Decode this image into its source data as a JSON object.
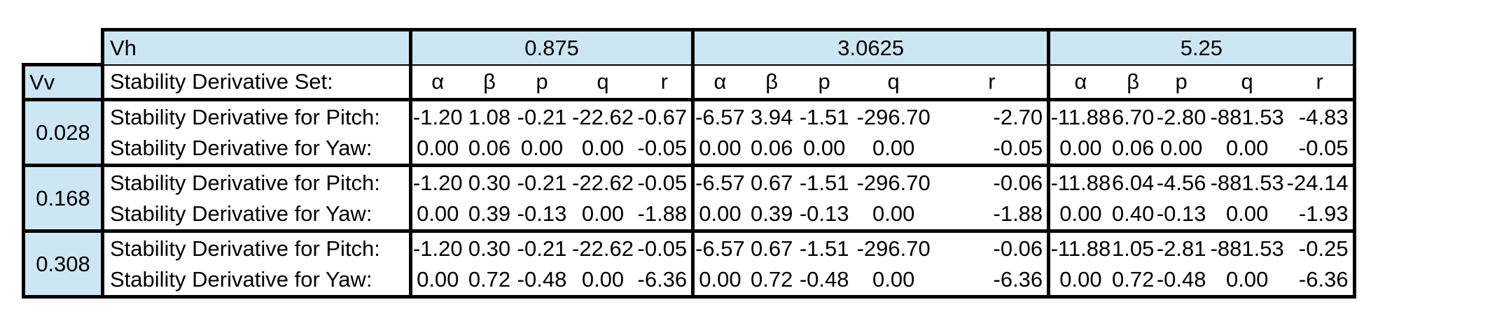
{
  "header": {
    "vh_label": "Vh",
    "vv_label": "Vv",
    "set_label": "Stability Derivative Set:",
    "groups": [
      "0.875",
      "3.0625",
      "5.25"
    ],
    "symbols": [
      "α",
      "β",
      "p",
      "q",
      "r"
    ]
  },
  "rows": [
    {
      "vv": "0.028",
      "pitch_label": "Stability Derivative for Pitch:",
      "yaw_label": "Stability Derivative for Yaw:",
      "pitch": [
        [
          "-1.20",
          "1.08",
          "-0.21",
          "-22.62",
          "-0.67"
        ],
        [
          "-6.57",
          "3.94",
          "-1.51",
          "-296.70",
          "-2.70"
        ],
        [
          "-11.88",
          "6.70",
          "-2.80",
          "-881.53",
          "-4.83"
        ]
      ],
      "yaw": [
        [
          "0.00",
          "0.06",
          "0.00",
          "0.00",
          "-0.05"
        ],
        [
          "0.00",
          "0.06",
          "0.00",
          "0.00",
          "-0.05"
        ],
        [
          "0.00",
          "0.06",
          "0.00",
          "0.00",
          "-0.05"
        ]
      ]
    },
    {
      "vv": "0.168",
      "pitch_label": "Stability Derivative for Pitch:",
      "yaw_label": "Stability Derivative for Yaw:",
      "pitch": [
        [
          "-1.20",
          "0.30",
          "-0.21",
          "-22.62",
          "-0.05"
        ],
        [
          "-6.57",
          "0.67",
          "-1.51",
          "-296.70",
          "-0.06"
        ],
        [
          "-11.88",
          "6.04",
          "-4.56",
          "-881.53",
          "-24.14"
        ]
      ],
      "yaw": [
        [
          "0.00",
          "0.39",
          "-0.13",
          "0.00",
          "-1.88"
        ],
        [
          "0.00",
          "0.39",
          "-0.13",
          "0.00",
          "-1.88"
        ],
        [
          "0.00",
          "0.40",
          "-0.13",
          "0.00",
          "-1.93"
        ]
      ]
    },
    {
      "vv": "0.308",
      "pitch_label": "Stability Derivative for Pitch:",
      "yaw_label": "Stability Derivative for Yaw:",
      "pitch": [
        [
          "-1.20",
          "0.30",
          "-0.21",
          "-22.62",
          "-0.05"
        ],
        [
          "-6.57",
          "0.67",
          "-1.51",
          "-296.70",
          "-0.06"
        ],
        [
          "-11.88",
          "1.05",
          "-2.81",
          "-881.53",
          "-0.25"
        ]
      ],
      "yaw": [
        [
          "0.00",
          "0.72",
          "-0.48",
          "0.00",
          "-6.36"
        ],
        [
          "0.00",
          "0.72",
          "-0.48",
          "0.00",
          "-6.36"
        ],
        [
          "0.00",
          "0.72",
          "-0.48",
          "0.00",
          "-6.36"
        ]
      ]
    }
  ],
  "colors": {
    "header_fill": "#cde6f4",
    "border": "#000000"
  }
}
